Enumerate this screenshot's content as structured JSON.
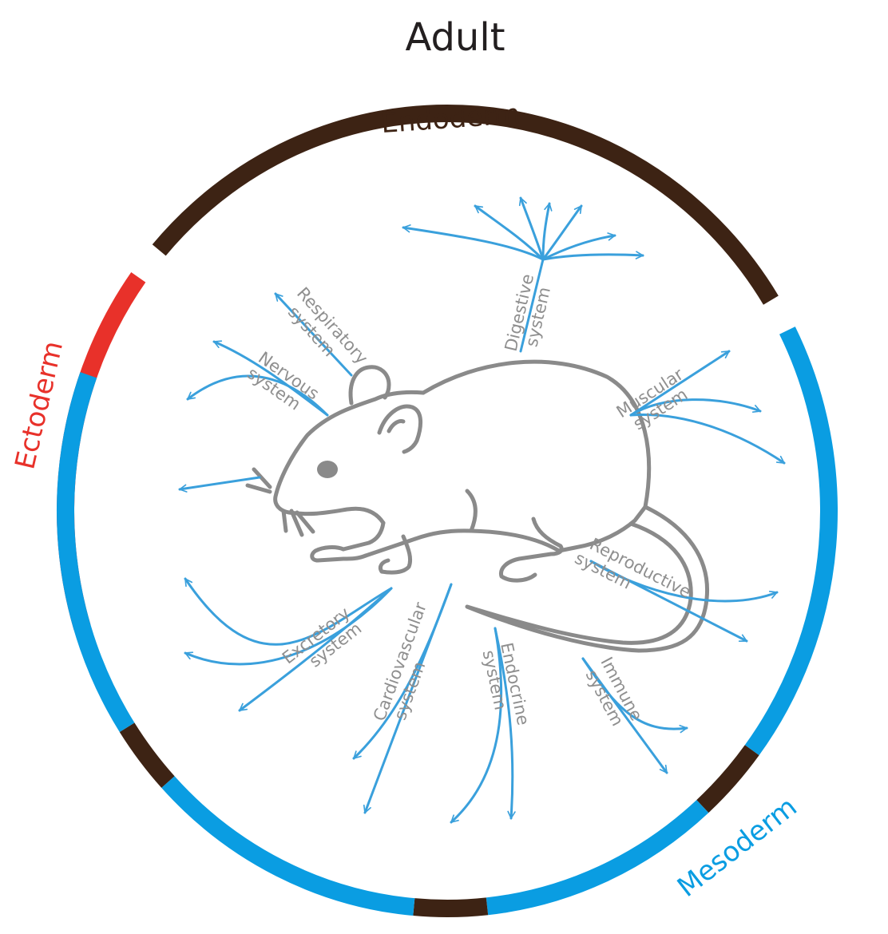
{
  "title": "Adult",
  "germ_layers": {
    "endoderm": {
      "label": "Endoderm",
      "color": "#3d2314"
    },
    "ectoderm": {
      "label": "Ectoderm",
      "color": "#e8312a"
    },
    "mesoderm": {
      "label": "Mesoderm",
      "color": "#0a9de2"
    }
  },
  "arrow_color": "#3aa0dc",
  "mouse_color": "#8a8a8a",
  "systems": {
    "digestive": {
      "line1": "Digestive",
      "line2": "system"
    },
    "respiratory": {
      "line1": "Respiratory",
      "line2": "system"
    },
    "nervous": {
      "line1": "Nervous",
      "line2": "system"
    },
    "muscular": {
      "line1": "Muscular",
      "line2": "system"
    },
    "reproductive": {
      "line1": "Reproductive",
      "line2": "system"
    },
    "excretory": {
      "line1": "Excretory",
      "line2": "system"
    },
    "cardiovascular": {
      "line1": "Cardiovascular",
      "line2": "system"
    },
    "endocrine": {
      "line1": "Endocrine",
      "line2": "system"
    },
    "immune": {
      "line1": "Immune",
      "line2": "system"
    }
  }
}
